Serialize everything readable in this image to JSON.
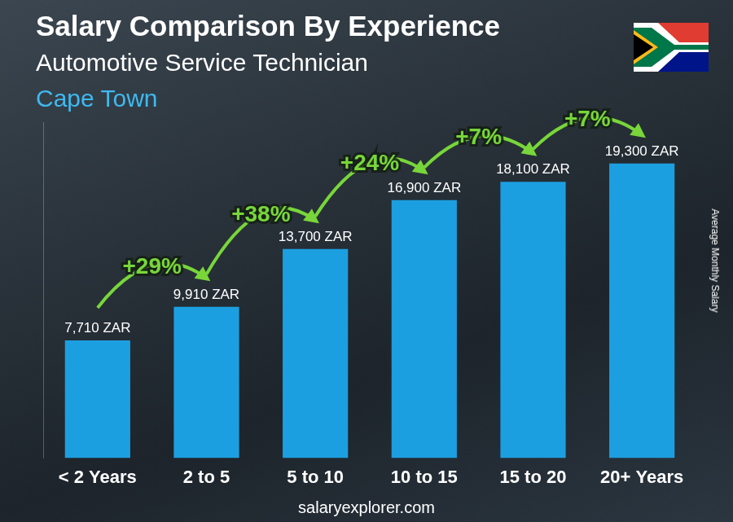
{
  "chart_data": {
    "type": "bar",
    "title": "Salary Comparison By Experience",
    "subtitle": "Automotive Service Technician",
    "location": "Cape Town",
    "y_label": "Average Monthly Salary",
    "source": "salaryexplorer.com",
    "categories": [
      "< 2 Years",
      "2 to 5",
      "5 to 10",
      "10 to 15",
      "15 to 20",
      "20+ Years"
    ],
    "values": [
      7710,
      9910,
      13700,
      16900,
      18100,
      19300
    ],
    "value_labels": [
      "7,710 ZAR",
      "9,910 ZAR",
      "13,700 ZAR",
      "16,900 ZAR",
      "18,100 ZAR",
      "19,300 ZAR"
    ],
    "data_labels": true,
    "growth": [
      {
        "value": 29,
        "label": "+29%"
      },
      {
        "value": 38,
        "label": "+38%"
      },
      {
        "value": 24,
        "label": "+24%"
      },
      {
        "value": 7,
        "label": "+7%"
      },
      {
        "value": 7,
        "label": "+7%"
      }
    ],
    "color": "#1c9fe0",
    "ylim": [
      0,
      22000
    ],
    "tick_labels": "x",
    "grid": false
  }
}
